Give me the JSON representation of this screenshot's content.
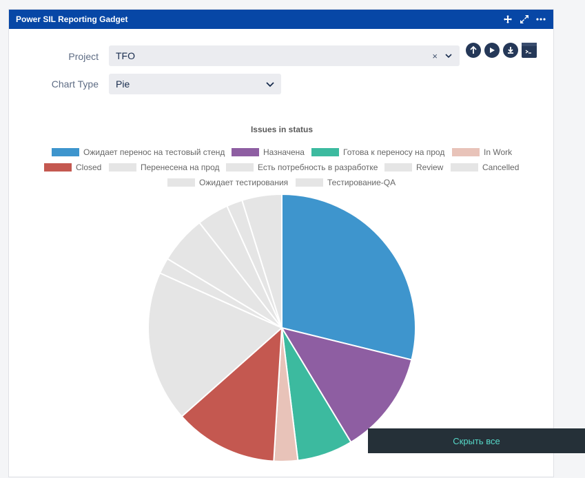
{
  "gadget": {
    "title": "Power SIL Reporting Gadget"
  },
  "form": {
    "project_label": "Project",
    "project_value": "TFO",
    "clear_symbol": "×",
    "chart_type_label": "Chart Type",
    "chart_type_value": "Pie"
  },
  "toast": {
    "label": "Скрыть все"
  },
  "colors": {
    "header": "#0747a6",
    "blue": "#3e95cd",
    "purple": "#8e5ea2",
    "teal": "#3cba9f",
    "pink": "#e8c3b9",
    "red": "#c45850",
    "grey": "#e5e5e5"
  },
  "chart_data": {
    "type": "pie",
    "title": "Issues in status",
    "legend_position": "top",
    "series": [
      {
        "name": "Ожидает перенос на тестовый стенд",
        "value": 30,
        "color": "#3e95cd"
      },
      {
        "name": "Назначена",
        "value": 13,
        "color": "#8e5ea2"
      },
      {
        "name": "Готова к переносу на прод",
        "value": 7,
        "color": "#3cba9f"
      },
      {
        "name": "In Work",
        "value": 3,
        "color": "#e8c3b9"
      },
      {
        "name": "Closed",
        "value": 13,
        "color": "#c45850"
      },
      {
        "name": "Перенесена на прод",
        "value": 19,
        "color": "#e5e5e5"
      },
      {
        "name": "Есть потребность в разработке",
        "value": 2,
        "color": "#e5e5e5"
      },
      {
        "name": "Review",
        "value": 6,
        "color": "#e5e5e5"
      },
      {
        "name": "Cancelled",
        "value": 4,
        "color": "#e5e5e5"
      },
      {
        "name": "Ожидает тестирования",
        "value": 2,
        "color": "#e5e5e5"
      },
      {
        "name": "Тестирование-QA",
        "value": 5,
        "color": "#e5e5e5"
      }
    ]
  }
}
